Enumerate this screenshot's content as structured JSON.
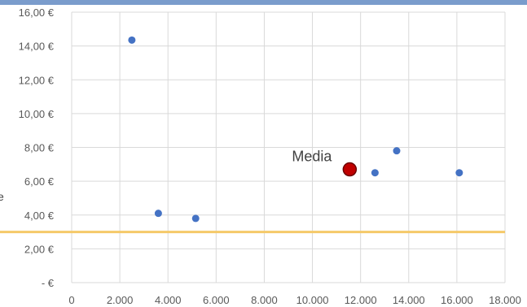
{
  "chart_data": {
    "type": "scatter",
    "title": "",
    "xlabel": "",
    "ylabel": "",
    "xlim": [
      0,
      18000
    ],
    "ylim": [
      0,
      16
    ],
    "x_ticks": [
      0,
      2000,
      4000,
      6000,
      8000,
      10000,
      12000,
      14000,
      16000,
      18000
    ],
    "x_tick_labels": [
      "0",
      "2.000",
      "4.000",
      "6.000",
      "8.000",
      "10.000",
      "12.000",
      "14.000",
      "16.000",
      "18.000"
    ],
    "y_ticks": [
      0,
      2,
      4,
      6,
      8,
      10,
      12,
      14,
      16
    ],
    "y_tick_labels": [
      "-   €",
      "2,00 €",
      "4,00 €",
      "6,00 €",
      "8,00 €",
      "10,00 €",
      "12,00 €",
      "14,00 €",
      "16,00 €"
    ],
    "grid": true,
    "series": [
      {
        "color": "#4472c4",
        "points": [
          {
            "x": 2500,
            "y": 14.35
          },
          {
            "x": 3600,
            "y": 4.1
          },
          {
            "x": 5150,
            "y": 3.8
          },
          {
            "x": 12600,
            "y": 6.5
          },
          {
            "x": 13500,
            "y": 7.8
          },
          {
            "x": 16100,
            "y": 6.5
          }
        ]
      }
    ],
    "highlight_point": {
      "x": 11550,
      "y": 6.7,
      "color": "#c00000",
      "label": "Media"
    },
    "reference_line": {
      "y": 3.0,
      "color": "#f5c969"
    }
  },
  "edge_glyph": "e"
}
